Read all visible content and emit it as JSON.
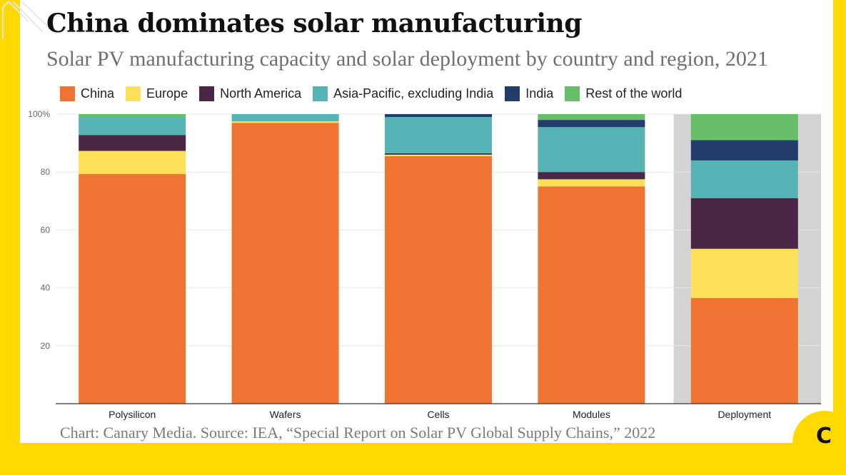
{
  "title": "China dominates solar manufacturing",
  "subtitle": "Solar PV manufacturing capacity and solar deployment by country and region, 2021",
  "source": "Chart: Canary Media. Source: IEA, “Special Report on Solar PV Global Supply Chains,” 2022",
  "badge_letter": "C",
  "colors": {
    "page_background": "#ffd800",
    "highlight_band": "#d3d3d3"
  },
  "chart_data": {
    "type": "bar",
    "stacked": true,
    "categories": [
      "Polysilicon",
      "Wafers",
      "Cells",
      "Modules",
      "Deployment"
    ],
    "highlighted_category": "Deployment",
    "ylim": [
      0,
      100
    ],
    "yticks": [
      20,
      40,
      60,
      80,
      100
    ],
    "ytick_labels": [
      "20",
      "40",
      "60",
      "80",
      "100%"
    ],
    "grid": true,
    "legend_position": "top",
    "series": [
      {
        "name": "China",
        "color": "#f07431",
        "values": [
          79.3,
          97.0,
          85.5,
          75.0,
          36.5
        ]
      },
      {
        "name": "Europe",
        "color": "#fde05a",
        "values": [
          8.0,
          0.5,
          0.5,
          2.5,
          17.0
        ]
      },
      {
        "name": "North America",
        "color": "#4a2745",
        "values": [
          5.5,
          0.0,
          0.5,
          2.5,
          17.5
        ]
      },
      {
        "name": "Asia-Pacific, excluding India",
        "color": "#56b4b4",
        "values": [
          6.2,
          2.5,
          12.5,
          15.5,
          13.0
        ]
      },
      {
        "name": "India",
        "color": "#223d69",
        "values": [
          0.0,
          0.0,
          1.0,
          2.5,
          7.0
        ]
      },
      {
        "name": "Rest of the world",
        "color": "#66bf68",
        "values": [
          1.0,
          0.0,
          0.0,
          2.0,
          9.0
        ]
      }
    ]
  }
}
